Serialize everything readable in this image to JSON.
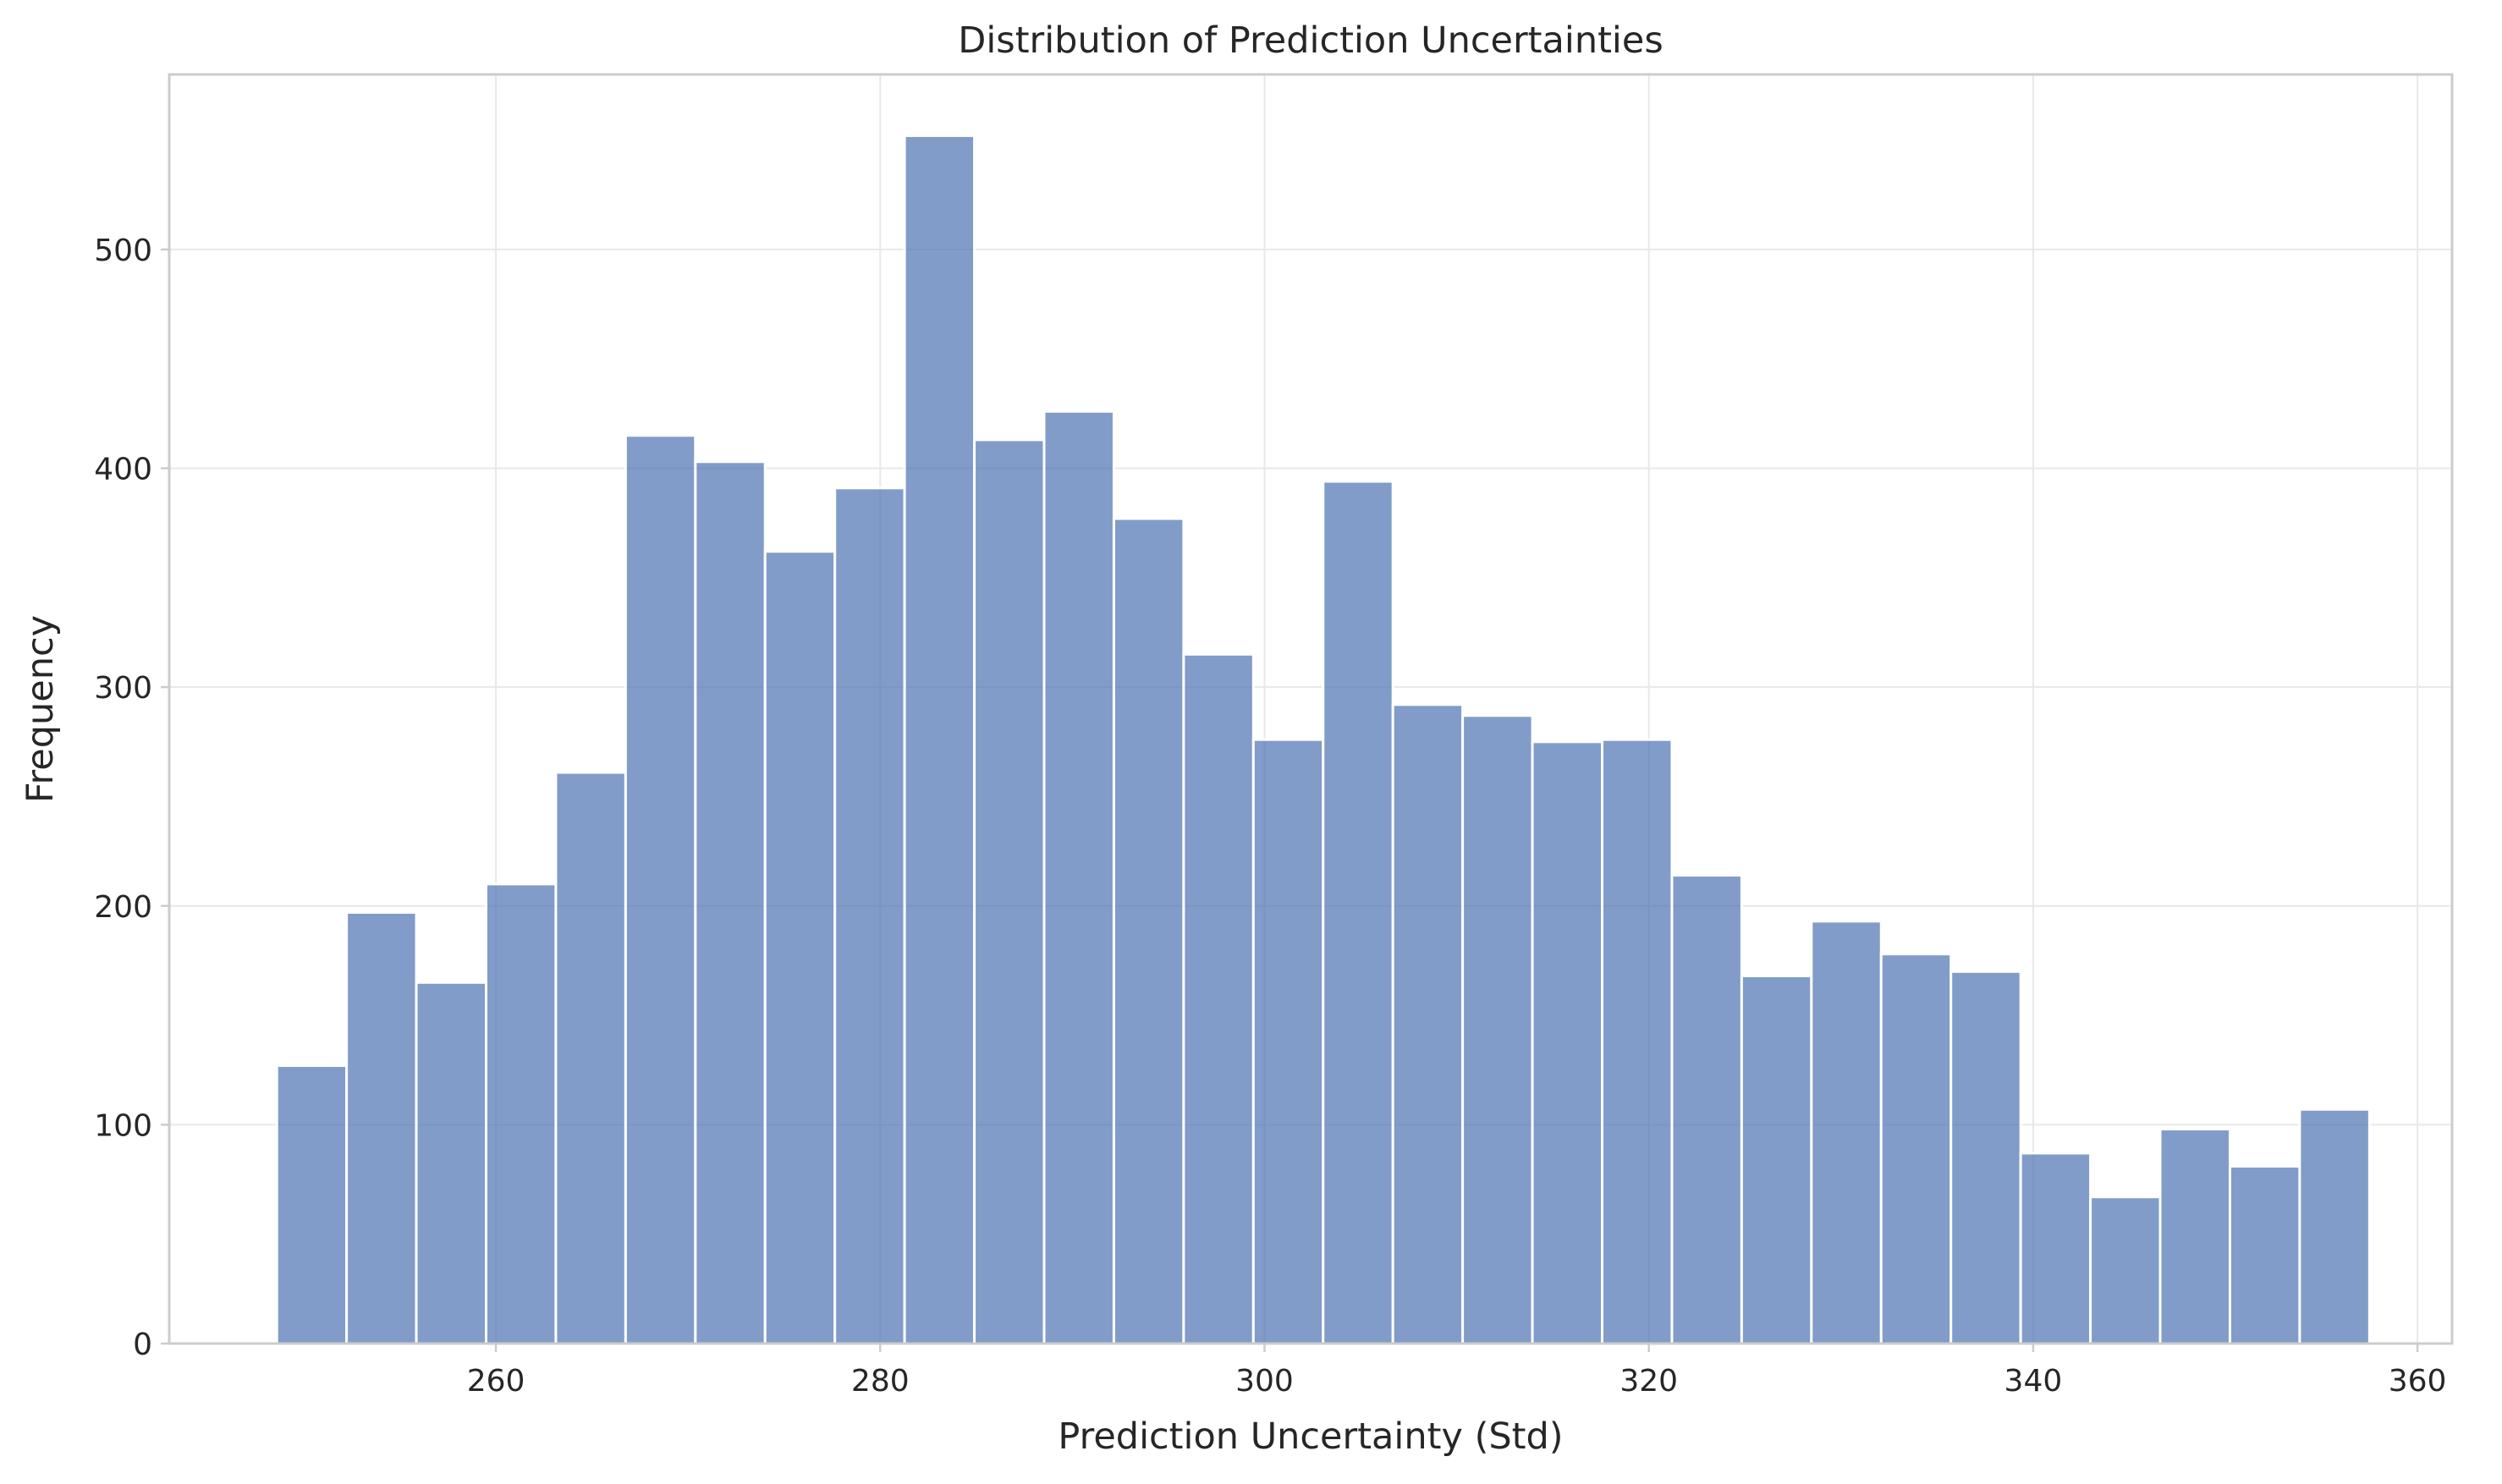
{
  "chart_data": {
    "type": "bar",
    "title": "Distribution of Prediction Uncertainties",
    "xlabel": "Prediction Uncertainty (Std)",
    "ylabel": "Frequency",
    "xlim": [
      243,
      361.8
    ],
    "ylim": [
      0,
      580
    ],
    "xticks": [
      "260",
      "280",
      "300",
      "320",
      "340",
      "360"
    ],
    "xtick_values": [
      260,
      280,
      300,
      320,
      340,
      360
    ],
    "yticks": [
      "0",
      "100",
      "200",
      "300",
      "400",
      "500"
    ],
    "ytick_values": [
      0,
      100,
      200,
      300,
      400,
      500
    ],
    "grid": true,
    "bar_color": "#4c72b0",
    "bin_start": 248.6,
    "bin_width": 3.63,
    "values": [
      127,
      197,
      165,
      210,
      261,
      415,
      403,
      362,
      391,
      552,
      413,
      426,
      377,
      315,
      276,
      394,
      292,
      287,
      275,
      276,
      214,
      168,
      193,
      178,
      170,
      87,
      67,
      98,
      81,
      107
    ]
  }
}
